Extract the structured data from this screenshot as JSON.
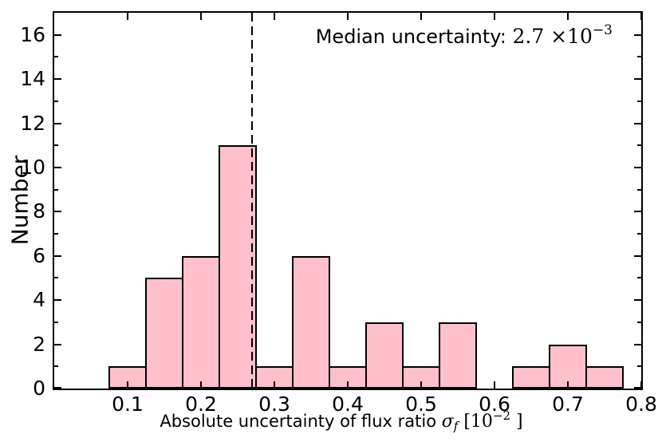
{
  "ylabel_text": "Number",
  "annotation": {
    "prefix": "Median uncertainty: ",
    "value_base": "2.7 ×10",
    "exponent": "−3"
  },
  "xlabel": {
    "prefix": "Absolute uncertainty of flux ratio ",
    "symbol": "σ",
    "symbol_sub": "f",
    "unit_open": " [10",
    "unit_exp": "−2",
    "unit_close": " ]"
  },
  "chart_data": {
    "type": "bar",
    "subtype": "histogram",
    "title": "",
    "xlabel": "Absolute uncertainty of flux ratio σ_f [10^−2]",
    "ylabel": "Number",
    "annotation": "Median uncertainty: 2.7 ×10^−3",
    "xlim": [
      0,
      0.8
    ],
    "ylim": [
      0,
      17
    ],
    "grid": false,
    "legend": null,
    "bar_fill": "#ffc0cb",
    "bar_edge": "#000000",
    "median_line_x": 0.27,
    "bin_width": 0.05,
    "bins": [
      {
        "start": 0.075,
        "count": 1
      },
      {
        "start": 0.125,
        "count": 5
      },
      {
        "start": 0.175,
        "count": 6
      },
      {
        "start": 0.225,
        "count": 11
      },
      {
        "start": 0.275,
        "count": 1
      },
      {
        "start": 0.325,
        "count": 6
      },
      {
        "start": 0.375,
        "count": 1
      },
      {
        "start": 0.425,
        "count": 3
      },
      {
        "start": 0.475,
        "count": 1
      },
      {
        "start": 0.525,
        "count": 3
      },
      {
        "start": 0.575,
        "count": 0
      },
      {
        "start": 0.625,
        "count": 1
      },
      {
        "start": 0.675,
        "count": 2
      },
      {
        "start": 0.725,
        "count": 1
      }
    ],
    "xticks": [
      {
        "value": 0.1,
        "label": "0.1"
      },
      {
        "value": 0.2,
        "label": "0.2"
      },
      {
        "value": 0.3,
        "label": "0.3"
      },
      {
        "value": 0.4,
        "label": "0.4"
      },
      {
        "value": 0.5,
        "label": "0.5"
      },
      {
        "value": 0.6,
        "label": "0.6"
      },
      {
        "value": 0.7,
        "label": "0.7"
      },
      {
        "value": 0.8,
        "label": "0.8"
      }
    ],
    "yticks": [
      {
        "value": 0,
        "label": "0"
      },
      {
        "value": 2,
        "label": "2"
      },
      {
        "value": 4,
        "label": "4"
      },
      {
        "value": 6,
        "label": "6"
      },
      {
        "value": 8,
        "label": "8"
      },
      {
        "value": 10,
        "label": "10"
      },
      {
        "value": 12,
        "label": "12"
      },
      {
        "value": 14,
        "label": "14"
      },
      {
        "value": 16,
        "label": "16"
      }
    ],
    "y_minor_ticks": [
      1,
      3,
      5,
      7,
      9,
      11,
      13,
      15
    ]
  }
}
